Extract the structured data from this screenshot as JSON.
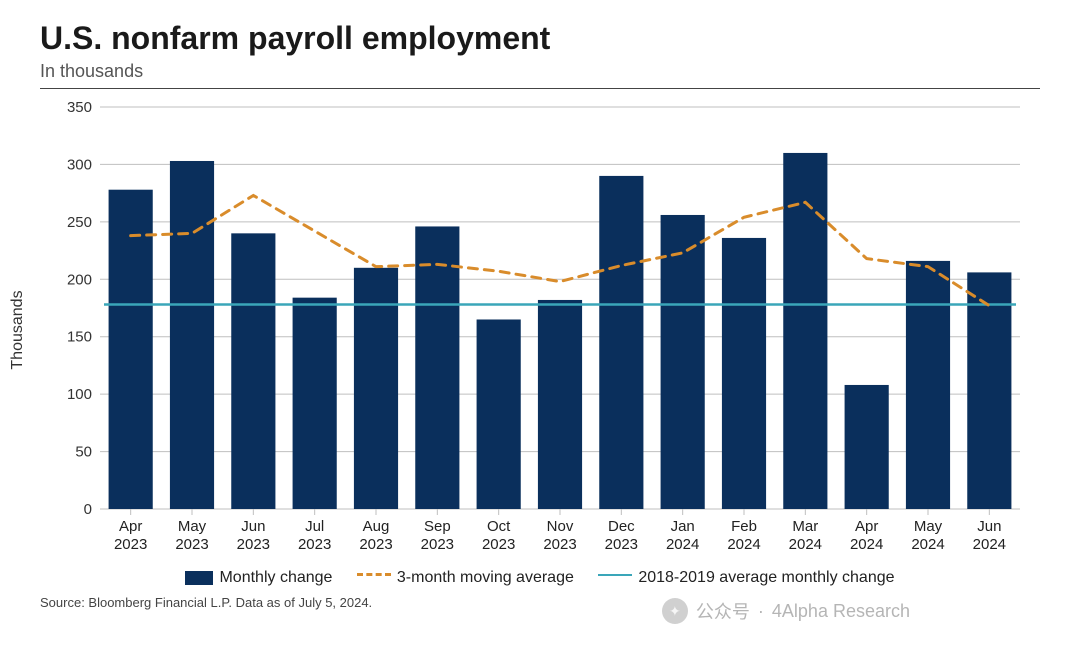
{
  "header": {
    "title": "U.S. nonfarm payroll employment",
    "subtitle": "In thousands"
  },
  "chart": {
    "type": "bar+line",
    "ylabel": "Thousands",
    "ylim": [
      0,
      350
    ],
    "ytick_step": 50,
    "yticks": [
      0,
      50,
      100,
      150,
      200,
      250,
      300,
      350
    ],
    "background_color": "#ffffff",
    "grid_color": "#bfbfbf",
    "axis_color": "#666666",
    "tick_fontsize": 15,
    "label_fontsize": 16,
    "categories": [
      {
        "line1": "Apr",
        "line2": "2023"
      },
      {
        "line1": "May",
        "line2": "2023"
      },
      {
        "line1": "Jun",
        "line2": "2023"
      },
      {
        "line1": "Jul",
        "line2": "2023"
      },
      {
        "line1": "Aug",
        "line2": "2023"
      },
      {
        "line1": "Sep",
        "line2": "2023"
      },
      {
        "line1": "Oct",
        "line2": "2023"
      },
      {
        "line1": "Nov",
        "line2": "2023"
      },
      {
        "line1": "Dec",
        "line2": "2023"
      },
      {
        "line1": "Jan",
        "line2": "2024"
      },
      {
        "line1": "Feb",
        "line2": "2024"
      },
      {
        "line1": "Mar",
        "line2": "2024"
      },
      {
        "line1": "Apr",
        "line2": "2024"
      },
      {
        "line1": "May",
        "line2": "2024"
      },
      {
        "line1": "Jun",
        "line2": "2024"
      }
    ],
    "series": {
      "monthly_change": {
        "label": "Monthly change",
        "color": "#0a2f5c",
        "bar_width_frac": 0.72,
        "values": [
          278,
          303,
          240,
          184,
          210,
          246,
          165,
          182,
          290,
          256,
          236,
          310,
          108,
          216,
          206
        ]
      },
      "moving_avg": {
        "label": "3-month moving average",
        "color": "#d98c2b",
        "dash": "9,7",
        "line_width": 3,
        "values": [
          238,
          240,
          273,
          242,
          211,
          213,
          207,
          198,
          212,
          223,
          254,
          267,
          218,
          211,
          177
        ]
      },
      "baseline": {
        "label": "2018-2019 average monthly change",
        "color": "#3aa6b9",
        "line_width": 2.5,
        "value": 178
      }
    }
  },
  "legend": {
    "item1": "Monthly change",
    "item2": "3-month moving average",
    "item3": "2018-2019 average monthly change"
  },
  "source": "Source: Bloomberg Financial L.P. Data as of July 5, 2024.",
  "watermark": {
    "label1": "公众号",
    "label2": "4Alpha Research"
  }
}
